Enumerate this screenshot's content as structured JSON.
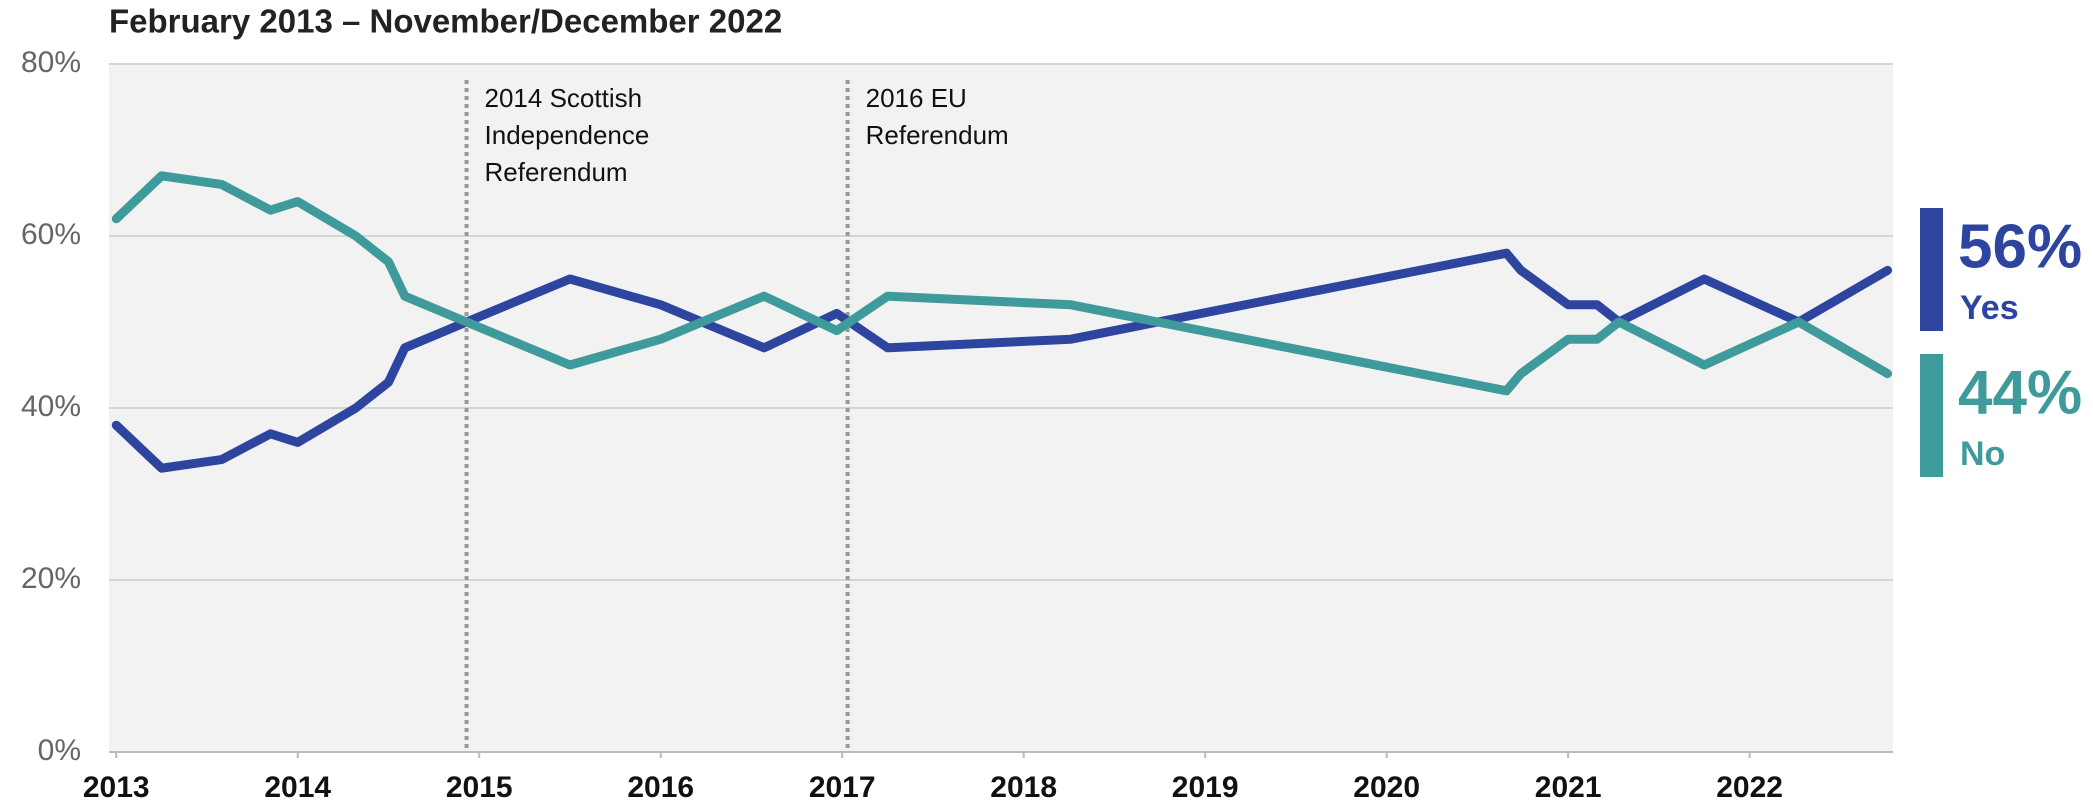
{
  "chart_data": {
    "type": "line",
    "title": "February 2013 – November/December 2022",
    "xlim": [
      2012.96,
      2022.79
    ],
    "xticks": [
      2013,
      2014,
      2015,
      2016,
      2017,
      2018,
      2019,
      2020,
      2021,
      2022
    ],
    "ylim": [
      0,
      80
    ],
    "yticks": [
      {
        "value": 0,
        "label": "0%"
      },
      {
        "value": 20,
        "label": "20%"
      },
      {
        "value": 40,
        "label": "40%"
      },
      {
        "value": 60,
        "label": "60%"
      },
      {
        "value": 80,
        "label": "80%"
      }
    ],
    "grid": true,
    "x": [
      2013.0,
      2013.25,
      2013.58,
      2013.85,
      2014.0,
      2014.32,
      2014.5,
      2014.59,
      2014.93,
      2015.5,
      2016.0,
      2016.57,
      2016.97,
      2017.25,
      2018.26,
      2020.66,
      2020.74,
      2021.0,
      2021.16,
      2021.28,
      2021.75,
      2022.27,
      2022.76
    ],
    "series": [
      {
        "name": "Yes",
        "color": "#2e45a0",
        "end_label": "56%",
        "values": [
          38,
          33,
          34,
          37,
          36,
          40,
          43,
          47,
          50,
          55,
          52,
          47,
          51,
          47,
          48,
          58,
          56,
          52,
          52,
          50,
          55,
          50,
          56
        ]
      },
      {
        "name": "No",
        "color": "#3f9b9b",
        "end_label": "44%",
        "values": [
          62,
          67,
          66,
          63,
          64,
          60,
          57,
          53,
          50,
          45,
          48,
          53,
          49,
          53,
          52,
          42,
          44,
          48,
          48,
          50,
          45,
          50,
          44
        ]
      }
    ],
    "annotations": [
      {
        "x": 2014.93,
        "lines": [
          "2014 Scottish",
          "Independence",
          "Referendum"
        ]
      },
      {
        "x": 2017.03,
        "lines": [
          "2016 EU",
          "Referendum"
        ]
      }
    ]
  }
}
